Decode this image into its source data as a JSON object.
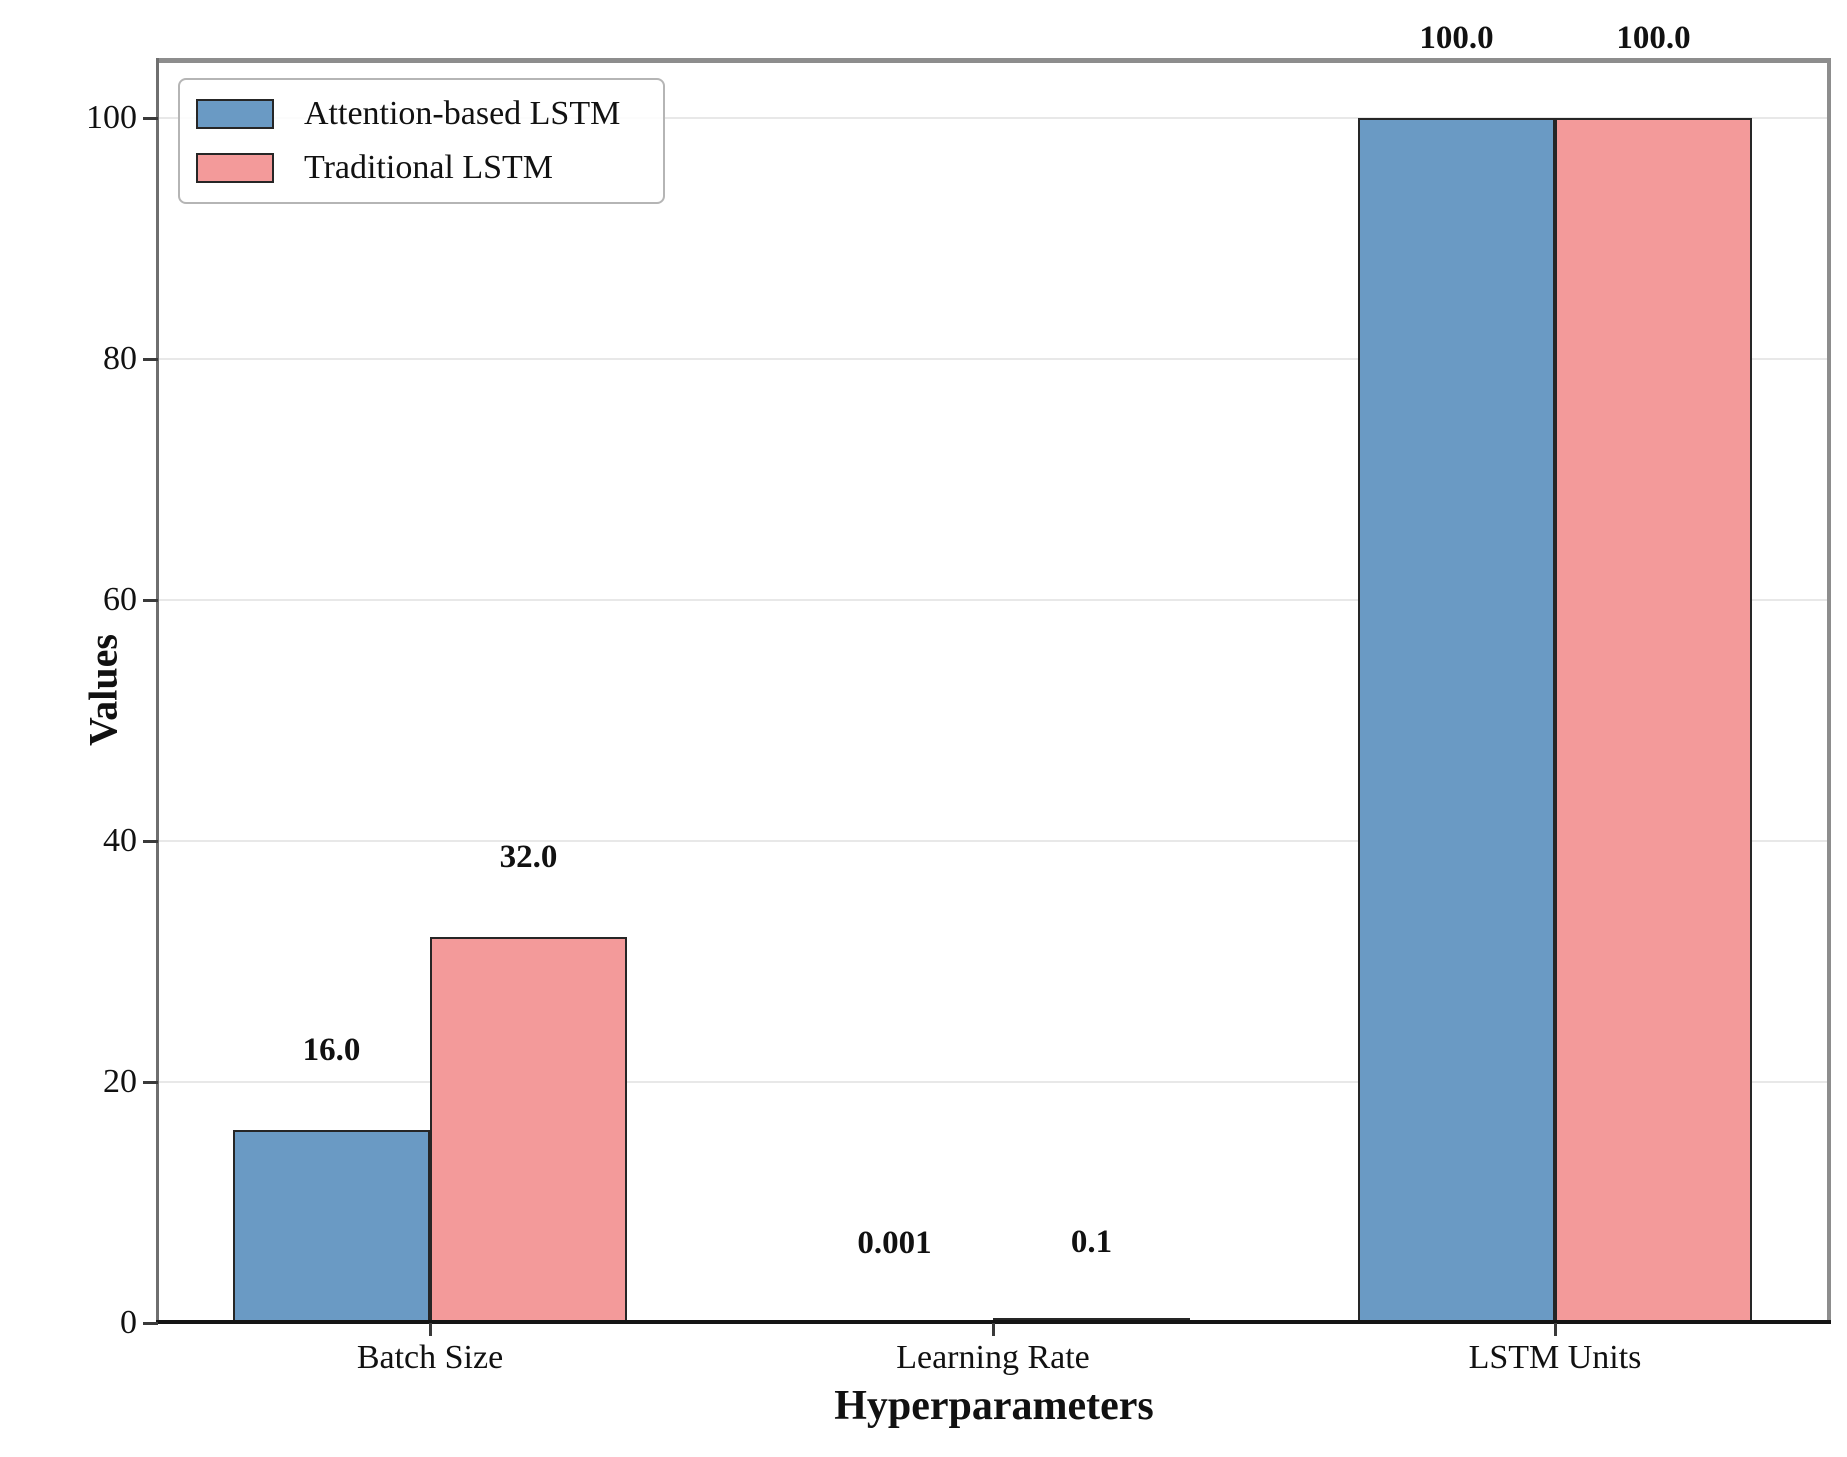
{
  "chart_data": {
    "type": "bar",
    "title": "",
    "xlabel": "Hyperparameters",
    "ylabel": "Values",
    "categories": [
      "Batch Size",
      "Learning Rate",
      "LSTM Units"
    ],
    "series": [
      {
        "name": "Attention-based LSTM",
        "color": "#6a9ac4",
        "values": [
          16,
          0.001,
          100
        ],
        "value_labels": [
          "16.0",
          "0.001",
          "100.0"
        ]
      },
      {
        "name": "Traditional LSTM",
        "color": "#f39a9a",
        "values": [
          32,
          0.1,
          100
        ],
        "value_labels": [
          "32.0",
          "0.1",
          "100.0"
        ]
      }
    ],
    "yticks": [
      0,
      20,
      40,
      60,
      80,
      100
    ],
    "ytick_labels": [
      "0",
      "20",
      "40",
      "60",
      "80",
      "100"
    ],
    "ylim": [
      0,
      104.8
    ],
    "grid": "horizontal",
    "legend_position": "upper-left",
    "bar_edge_color": "#262626"
  }
}
